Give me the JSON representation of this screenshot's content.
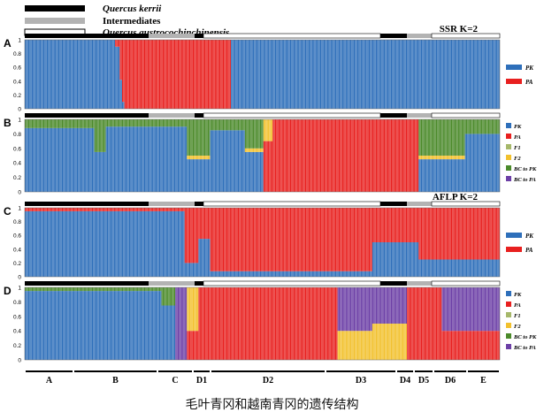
{
  "legend_top": [
    {
      "label": "Quercus kerrii",
      "color": "#000000"
    },
    {
      "label": "Intermediates",
      "color": "#b3b3b3"
    },
    {
      "label": "Quercus austrocochinchinensis",
      "color": "#ffffff"
    }
  ],
  "caption": "毛叶青冈和越南青冈的遗传结构",
  "colors": {
    "PK": "#2e6fba",
    "PA": "#e8201f",
    "F1": "#a6b86a",
    "F2": "#f2c12e",
    "BC_PK": "#4b8a2a",
    "BC_PA": "#6c3fa6"
  },
  "chart_data": [
    {
      "panel": "A",
      "title": "SSR K=2",
      "type": "bar",
      "y_ticks": [
        "0",
        "0.2",
        "0.4",
        "0.6",
        "0.8",
        "1"
      ],
      "ylim": [
        0,
        1
      ],
      "legend": [
        {
          "label": "PK",
          "key": "PK"
        },
        {
          "label": "PA",
          "key": "PA"
        }
      ],
      "default_class": "PK",
      "segments": [
        {
          "from": 0,
          "to": 78,
          "values": {
            "PK": 1.0
          }
        },
        {
          "from": 78,
          "to": 82,
          "values": {
            "PK": 0.9,
            "PA": 0.1
          }
        },
        {
          "from": 82,
          "to": 84,
          "values": {
            "PK": 0.42,
            "PA": 0.58
          }
        },
        {
          "from": 84,
          "to": 86,
          "values": {
            "PK": 0.1,
            "PA": 0.9
          }
        },
        {
          "from": 86,
          "to": 178,
          "values": {
            "PA": 1.0
          }
        },
        {
          "from": 178,
          "to": 410,
          "values": {
            "PK": 1.0
          }
        }
      ]
    },
    {
      "panel": "B",
      "title": "",
      "type": "bar",
      "y_ticks": [
        "0",
        "0.2",
        "0.4",
        "0.6",
        "0.8",
        "1"
      ],
      "ylim": [
        0,
        1
      ],
      "legend": [
        {
          "label": "PK",
          "key": "PK"
        },
        {
          "label": "PA",
          "key": "PA"
        },
        {
          "label": "F1",
          "key": "F1"
        },
        {
          "label": "F2",
          "key": "F2"
        },
        {
          "label": "BC to PK",
          "key": "BC_PK"
        },
        {
          "label": "BC to PA",
          "key": "BC_PA"
        }
      ],
      "default_class": "BC_PK",
      "segments": [
        {
          "from": 0,
          "to": 60,
          "values": {
            "PK": 0.88,
            "BC_PK": 0.12
          }
        },
        {
          "from": 60,
          "to": 70,
          "values": {
            "PK": 0.55,
            "BC_PK": 0.45
          }
        },
        {
          "from": 70,
          "to": 140,
          "values": {
            "PK": 0.9,
            "BC_PK": 0.1
          }
        },
        {
          "from": 140,
          "to": 160,
          "values": {
            "PK": 0.45,
            "BC_PK": 0.5,
            "F2": 0.05
          }
        },
        {
          "from": 160,
          "to": 190,
          "values": {
            "PK": 0.85,
            "BC_PK": 0.15
          }
        },
        {
          "from": 190,
          "to": 206,
          "values": {
            "PK": 0.55,
            "BC_PK": 0.4,
            "F2": 0.05
          }
        },
        {
          "from": 206,
          "to": 214,
          "values": {
            "F2": 0.3,
            "PA": 0.7
          }
        },
        {
          "from": 214,
          "to": 340,
          "values": {
            "PA": 1.0
          }
        },
        {
          "from": 340,
          "to": 380,
          "values": {
            "PK": 0.45,
            "BC_PK": 0.5,
            "F2": 0.05
          }
        },
        {
          "from": 380,
          "to": 410,
          "values": {
            "PK": 0.8,
            "BC_PK": 0.2
          }
        }
      ]
    },
    {
      "panel": "C",
      "title": "AFLP K=2",
      "type": "bar",
      "y_ticks": [
        "0",
        "0.2",
        "0.4",
        "0.6",
        "0.8",
        "1"
      ],
      "ylim": [
        0,
        1
      ],
      "legend": [
        {
          "label": "PK",
          "key": "PK"
        },
        {
          "label": "PA",
          "key": "PA"
        }
      ],
      "default_class": "PA",
      "segments": [
        {
          "from": 0,
          "to": 138,
          "values": {
            "PK": 0.95,
            "PA": 0.05
          }
        },
        {
          "from": 138,
          "to": 150,
          "values": {
            "PK": 0.2,
            "PA": 0.8
          }
        },
        {
          "from": 150,
          "to": 160,
          "values": {
            "PK": 0.55,
            "PA": 0.45
          }
        },
        {
          "from": 160,
          "to": 300,
          "values": {
            "PK": 0.08,
            "PA": 0.92
          }
        },
        {
          "from": 300,
          "to": 340,
          "values": {
            "PK": 0.5,
            "PA": 0.5
          }
        },
        {
          "from": 340,
          "to": 410,
          "values": {
            "PK": 0.25,
            "PA": 0.75
          }
        }
      ]
    },
    {
      "panel": "D",
      "title": "",
      "type": "bar",
      "y_ticks": [
        "0",
        "0.2",
        "0.4",
        "0.6",
        "0.8",
        "1"
      ],
      "ylim": [
        0,
        1
      ],
      "legend": [
        {
          "label": "PK",
          "key": "PK"
        },
        {
          "label": "PA",
          "key": "PA"
        },
        {
          "label": "F1",
          "key": "F1"
        },
        {
          "label": "F2",
          "key": "F2"
        },
        {
          "label": "BC to PK",
          "key": "BC_PK"
        },
        {
          "label": "BC to PA",
          "key": "BC_PA"
        }
      ],
      "default_class": "PA",
      "segments": [
        {
          "from": 0,
          "to": 118,
          "values": {
            "PK": 0.95,
            "BC_PK": 0.05
          }
        },
        {
          "from": 118,
          "to": 130,
          "values": {
            "PK": 0.75,
            "BC_PK": 0.25
          }
        },
        {
          "from": 130,
          "to": 140,
          "values": {
            "BC_PA": 1.0
          }
        },
        {
          "from": 140,
          "to": 150,
          "values": {
            "F2": 0.6,
            "PA": 0.4
          }
        },
        {
          "from": 150,
          "to": 270,
          "values": {
            "PA": 1.0
          }
        },
        {
          "from": 270,
          "to": 300,
          "values": {
            "BC_PA": 0.6,
            "F2": 0.4
          }
        },
        {
          "from": 300,
          "to": 330,
          "values": {
            "BC_PA": 0.5,
            "F2": 0.5
          }
        },
        {
          "from": 330,
          "to": 360,
          "values": {
            "PA": 1.0
          }
        },
        {
          "from": 360,
          "to": 410,
          "values": {
            "BC_PA": 0.6,
            "PA": 0.4
          }
        }
      ]
    }
  ],
  "bottom_groups": [
    "A",
    "B",
    "C",
    "D1",
    "D2",
    "D3",
    "D4",
    "D5",
    "D6",
    "E"
  ]
}
